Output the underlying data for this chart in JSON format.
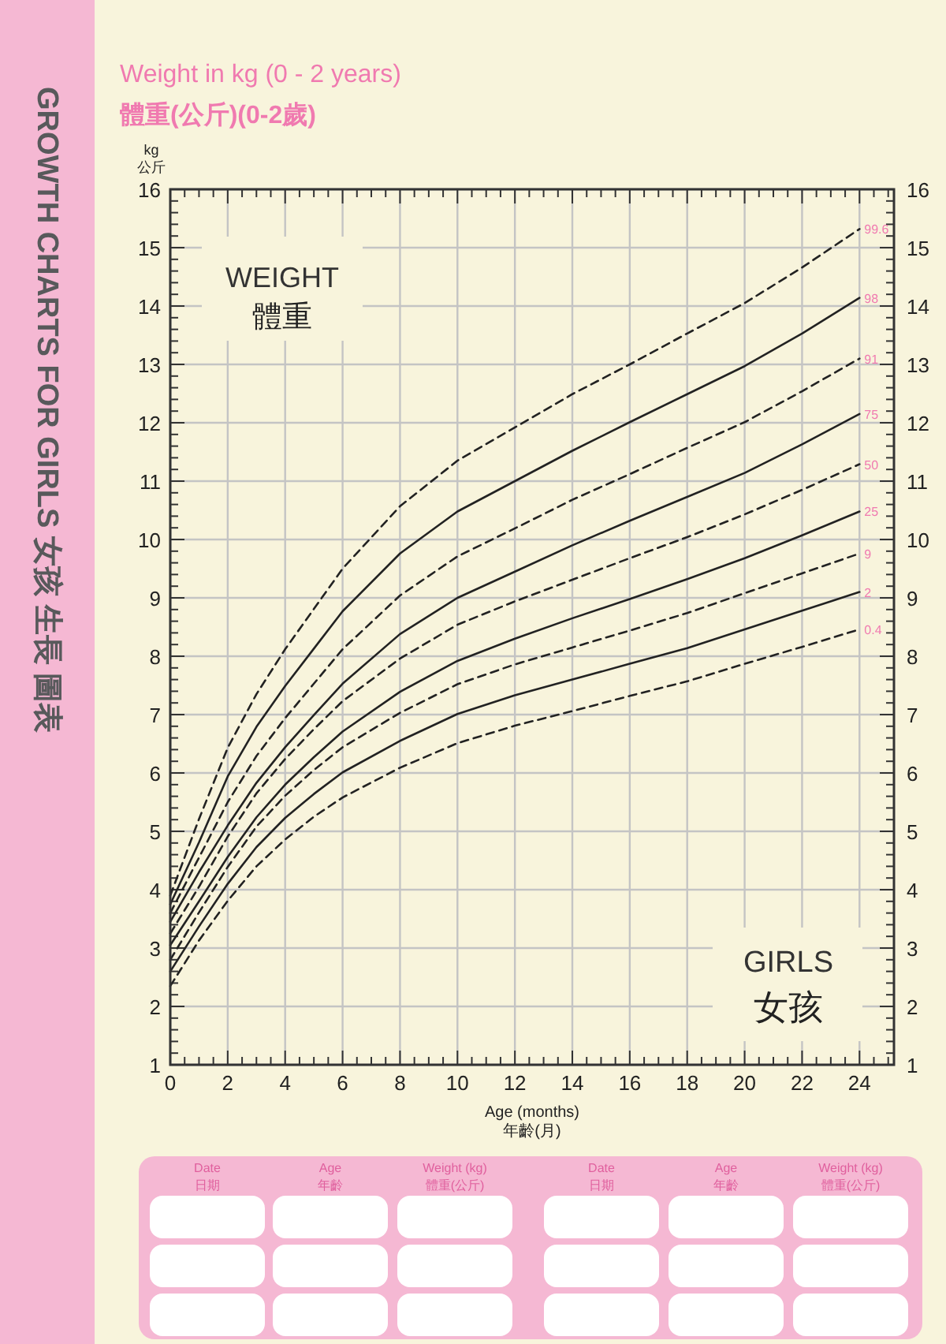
{
  "chart_data": {
    "type": "line",
    "title": "Weight in kg (0 - 2 years)",
    "subtitle": "體重(公斤)(0-2歲)",
    "xlabel": "Age (months)\n年齡(月)",
    "ylabel": "kg\n公斤",
    "x": [
      0,
      1,
      2,
      3,
      4,
      5,
      6,
      8,
      10,
      12,
      14,
      16,
      18,
      20,
      22,
      24
    ],
    "series": [
      {
        "name": "0.4",
        "color": "#222222",
        "line_style": "dashed",
        "values": [
          2.35,
          3.13,
          3.81,
          4.4,
          4.86,
          5.25,
          5.58,
          6.09,
          6.51,
          6.81,
          7.06,
          7.32,
          7.57,
          7.87,
          8.16,
          8.46
        ]
      },
      {
        "name": "2",
        "color": "#222222",
        "line_style": "solid",
        "values": [
          2.6,
          3.37,
          4.1,
          4.73,
          5.23,
          5.64,
          6.01,
          6.55,
          7.01,
          7.33,
          7.6,
          7.87,
          8.14,
          8.46,
          8.78,
          9.1
        ]
      },
      {
        "name": "9",
        "color": "#222222",
        "line_style": "dashed",
        "values": [
          2.8,
          3.61,
          4.39,
          5.08,
          5.61,
          6.05,
          6.44,
          7.03,
          7.52,
          7.86,
          8.15,
          8.44,
          8.74,
          9.08,
          9.42,
          9.76
        ]
      },
      {
        "name": "25",
        "color": "#222222",
        "line_style": "solid",
        "values": [
          3.05,
          3.8,
          4.56,
          5.24,
          5.8,
          6.27,
          6.71,
          7.39,
          7.92,
          8.3,
          8.65,
          8.98,
          9.32,
          9.68,
          10.07,
          10.48
        ]
      },
      {
        "name": "50",
        "color": "#222222",
        "line_style": "dashed",
        "values": [
          3.25,
          4.05,
          4.91,
          5.65,
          6.24,
          6.75,
          7.23,
          7.96,
          8.54,
          8.94,
          9.31,
          9.68,
          10.04,
          10.43,
          10.85,
          11.29
        ]
      },
      {
        "name": "75",
        "color": "#222222",
        "line_style": "solid",
        "values": [
          3.45,
          4.3,
          5.1,
          5.83,
          6.44,
          6.99,
          7.53,
          8.38,
          9.0,
          9.45,
          9.9,
          10.32,
          10.73,
          11.14,
          11.63,
          12.15
        ]
      },
      {
        "name": "91",
        "color": "#222222",
        "line_style": "dashed",
        "values": [
          3.6,
          4.55,
          5.5,
          6.29,
          6.94,
          7.53,
          8.12,
          9.04,
          9.71,
          10.19,
          10.68,
          11.12,
          11.57,
          12.01,
          12.54,
          13.1
        ]
      },
      {
        "name": "98",
        "color": "#222222",
        "line_style": "solid",
        "values": [
          3.75,
          4.81,
          5.94,
          6.79,
          7.49,
          8.13,
          8.77,
          9.76,
          10.48,
          11.0,
          11.52,
          12.01,
          12.49,
          12.97,
          13.53,
          14.14
        ]
      },
      {
        "name": "99.6",
        "color": "#222222",
        "line_style": "dashed",
        "values": [
          3.9,
          5.21,
          6.43,
          7.35,
          8.12,
          8.81,
          9.5,
          10.57,
          11.35,
          11.92,
          12.49,
          13.0,
          13.53,
          14.05,
          14.66,
          15.32
        ]
      }
    ],
    "xlim": [
      0,
      25.2
    ],
    "xticks": [
      0,
      2,
      4,
      6,
      8,
      10,
      12,
      14,
      16,
      18,
      20,
      22,
      24
    ],
    "ylim": [
      1,
      16
    ],
    "yticks": [
      1,
      2,
      3,
      4,
      5,
      6,
      7,
      8,
      9,
      10,
      11,
      12,
      13,
      14,
      15,
      16
    ],
    "y2lim": [
      1,
      16
    ],
    "y2ticks": [
      1,
      2,
      3,
      4,
      5,
      6,
      7,
      8,
      9,
      10,
      11,
      12,
      13,
      14,
      15,
      16
    ],
    "grid": true,
    "marker": "none",
    "annotations": [
      "GROWTH CHARTS FOR GIRLS 女孩 生長 圖表",
      "WEIGHT",
      "體重",
      "GIRLS",
      "女孩",
      "Date",
      "日期",
      "Age",
      "年齡",
      "Weight (kg)",
      "體重(公斤)",
      "Date",
      "日期",
      "Age",
      "年齡",
      "Weight (kg)",
      "體重(公斤)"
    ]
  }
}
